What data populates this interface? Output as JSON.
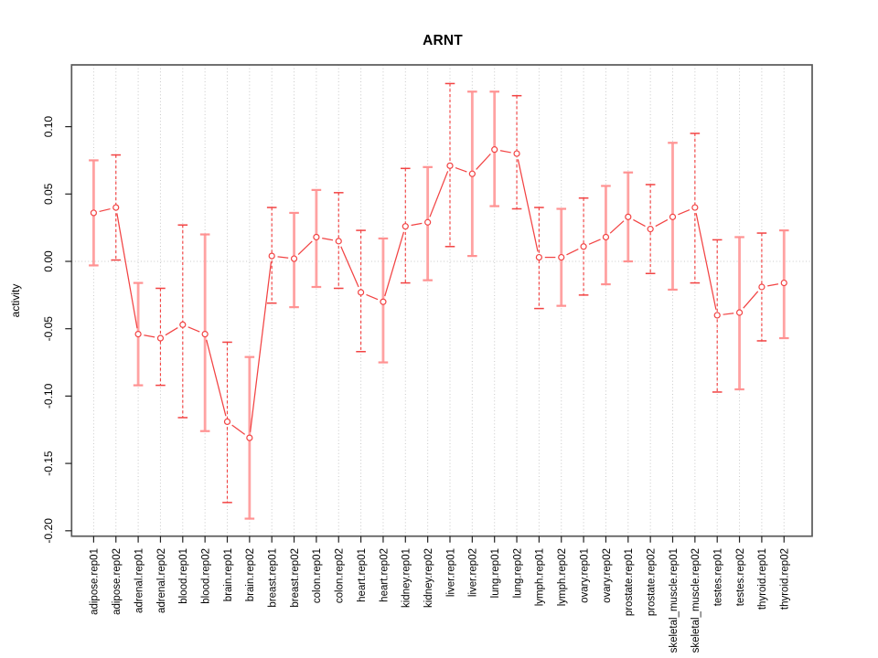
{
  "chart_data": {
    "type": "line",
    "title": "ARNT",
    "ylabel": "activity",
    "xlabel": "",
    "legend": "none",
    "grid": {
      "vertical_dotted_per_category": true,
      "horizontal_dotted_zero_line": true
    },
    "ylim": [
      -0.204,
      0.146
    ],
    "yticks": [
      0.1,
      0.05,
      0.0,
      -0.05,
      -0.1,
      -0.15,
      -0.2
    ],
    "ytick_labels": [
      "0.10",
      "0.05",
      "0.00",
      "-0.05",
      "-0.10",
      "-0.15",
      "-0.20"
    ],
    "categories": [
      "adipose.rep01",
      "adipose.rep02",
      "adrenal.rep01",
      "adrenal.rep02",
      "blood.rep01",
      "blood.rep02",
      "brain.rep01",
      "brain.rep02",
      "breast.rep01",
      "breast.rep02",
      "colon.rep01",
      "colon.rep02",
      "heart.rep01",
      "heart.rep02",
      "kidney.rep01",
      "kidney.rep02",
      "liver.rep01",
      "liver.rep02",
      "lung.rep01",
      "lung.rep02",
      "lymph.rep01",
      "lymph.rep02",
      "ovary.rep01",
      "ovary.rep02",
      "prostate.rep01",
      "prostate.rep02",
      "skeletal_muscle.rep01",
      "skeletal_muscle.rep02",
      "testes.rep01",
      "testes.rep02",
      "thyroid.rep01",
      "thyroid.rep02"
    ],
    "series": [
      {
        "name": "activity",
        "marker": "open-circle",
        "values": [
          0.036,
          0.04,
          -0.054,
          -0.057,
          -0.047,
          -0.054,
          -0.119,
          -0.131,
          0.004,
          0.002,
          0.018,
          0.015,
          -0.023,
          -0.03,
          0.026,
          0.029,
          0.071,
          0.065,
          0.083,
          0.08,
          0.003,
          0.003,
          0.011,
          0.018,
          0.033,
          0.024,
          0.033,
          0.04,
          -0.04,
          -0.038,
          -0.019,
          -0.016
        ],
        "error_low": [
          -0.003,
          0.001,
          -0.092,
          -0.092,
          -0.116,
          -0.126,
          -0.179,
          -0.191,
          -0.031,
          -0.034,
          -0.019,
          -0.02,
          -0.067,
          -0.075,
          -0.016,
          -0.014,
          0.011,
          0.004,
          0.041,
          0.039,
          -0.035,
          -0.033,
          -0.025,
          -0.017,
          0.0,
          -0.009,
          -0.021,
          -0.016,
          -0.097,
          -0.095,
          -0.059,
          -0.057
        ],
        "error_high": [
          0.075,
          0.079,
          -0.016,
          -0.02,
          0.027,
          0.02,
          -0.06,
          -0.071,
          0.04,
          0.036,
          0.053,
          0.051,
          0.023,
          0.017,
          0.069,
          0.07,
          0.132,
          0.126,
          0.126,
          0.123,
          0.04,
          0.039,
          0.047,
          0.056,
          0.066,
          0.057,
          0.088,
          0.095,
          0.016,
          0.018,
          0.021,
          0.023
        ],
        "error_bar_styles": [
          "solid",
          "dashed",
          "solid",
          "dashed",
          "dashed",
          "solid",
          "dashed",
          "solid",
          "dashed",
          "solid",
          "solid",
          "dashed",
          "dashed",
          "solid",
          "dashed",
          "solid",
          "dashed",
          "solid",
          "solid",
          "dashed",
          "dashed",
          "solid",
          "dashed",
          "solid",
          "solid",
          "dashed",
          "solid",
          "dashed",
          "dashed",
          "solid",
          "dashed",
          "solid"
        ]
      }
    ],
    "colors": {
      "line_and_points": "#f24343",
      "error_bar_dashed": "#f24343",
      "error_bar_solid": "#ffa2a2",
      "error_bar_solid_cap": "#ff9292",
      "grid": "#c8c8c8",
      "box": "#585858",
      "tick": "#222222",
      "text": "#000000"
    }
  }
}
